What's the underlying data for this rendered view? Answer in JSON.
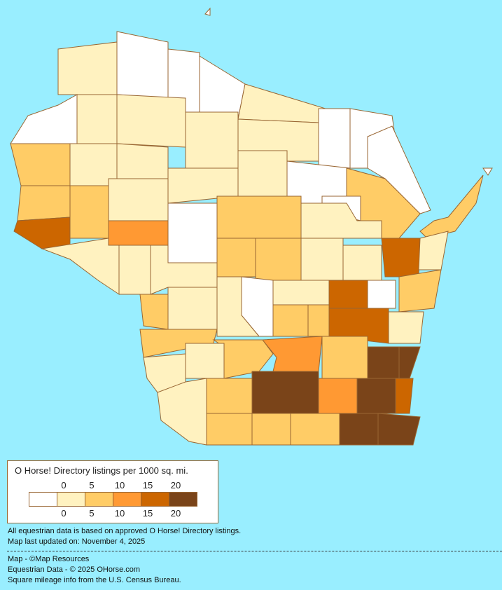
{
  "legend": {
    "title": "O Horse! Directory listings per 1000 sq. mi.",
    "ticks_top": [
      "0",
      "5",
      "10",
      "15",
      "20"
    ],
    "ticks_bottom": [
      "0",
      "5",
      "10",
      "15",
      "20"
    ],
    "class_colors": [
      "#ffffff",
      "#fff2c0",
      "#ffcc66",
      "#ff9933",
      "#cc6600",
      "#7a4419"
    ]
  },
  "colors": {
    "background": "#99eeff",
    "border": "#996633"
  },
  "notes": {
    "data_basis": "All equestrian data is based on approved O Horse! Directory listings.",
    "updated": "Map last updated on: November 4, 2025",
    "map_credit": "Map - ©Map Resources",
    "data_credit": "Equestrian Data - © 2025 OHorse.com",
    "census_credit": "Square mileage info from the U.S. Census Bureau."
  },
  "county_classes": [
    1,
    0,
    0,
    0,
    1,
    0,
    0,
    0,
    0,
    1,
    1,
    1,
    1,
    2,
    1,
    1,
    1,
    1,
    0,
    2,
    0,
    2,
    2,
    1,
    4,
    1,
    3,
    0,
    2,
    1,
    1,
    1,
    2,
    2,
    1,
    1,
    4,
    2,
    1,
    2,
    0,
    4,
    4,
    1,
    1,
    2,
    2,
    0,
    1,
    1,
    2,
    2,
    2,
    3,
    2,
    5,
    5,
    1,
    1,
    1,
    2,
    5,
    3,
    5,
    4,
    2,
    2,
    2,
    5,
    5
  ]
}
